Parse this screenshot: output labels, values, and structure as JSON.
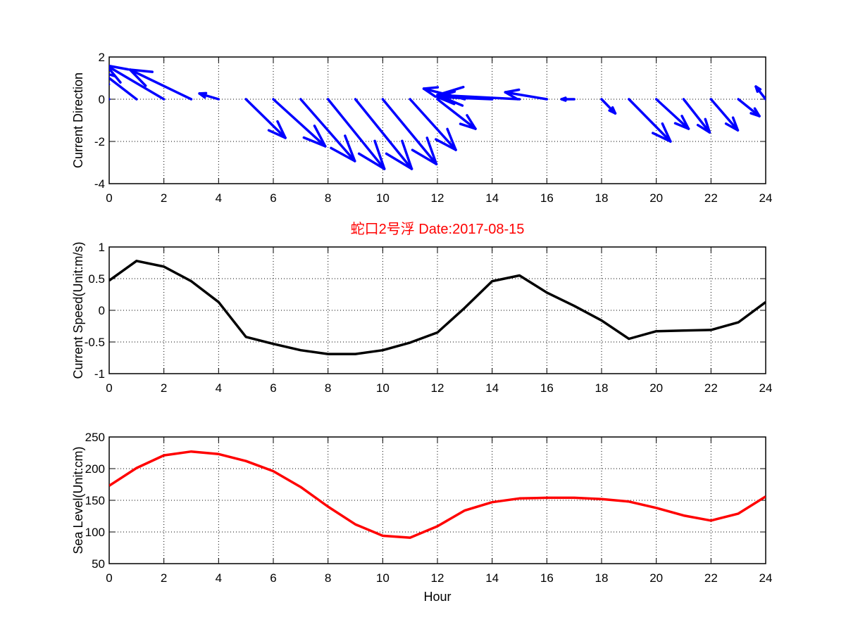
{
  "title": "蛇口2号浮   Date:2017-08-15",
  "colors": {
    "quiver": "#0000ff",
    "speed": "#000000",
    "sea": "#ff0000",
    "title": "#ff0000"
  },
  "chart_data": [
    {
      "type": "quiver",
      "ylabel": "Current Direction",
      "xlabel": "",
      "xlim": [
        0,
        24
      ],
      "ylim": [
        -4,
        2
      ],
      "xticks": [
        "0",
        "2",
        "4",
        "6",
        "8",
        "10",
        "12",
        "14",
        "16",
        "18",
        "20",
        "22",
        "24"
      ],
      "yticks": [
        "-4",
        "-2",
        "0",
        "2"
      ],
      "grid": true,
      "x": [
        0,
        1,
        2,
        3,
        4,
        5,
        6,
        7,
        8,
        9,
        10,
        11,
        12,
        13,
        14,
        15,
        16,
        17,
        18,
        19,
        20,
        21,
        22,
        23,
        24
      ],
      "u": [
        -1.6,
        -1.3,
        -2.1,
        -2.24,
        -0.7,
        1.44,
        1.9,
        1.98,
        2.06,
        2.06,
        1.96,
        1.67,
        1.39,
        -1.5,
        -2.0,
        -3.0,
        -1.52,
        -0.46,
        0.5,
        1.52,
        1.18,
        0.95,
        0.98,
        0.77,
        -0.36
      ],
      "v": [
        1.5,
        1.3,
        1.6,
        1.4,
        0.27,
        -1.83,
        -2.23,
        -2.93,
        -3.3,
        -3.3,
        -3.07,
        -2.4,
        -1.4,
        0.5,
        0.1,
        0.2,
        0.33,
        0.0,
        -0.67,
        -2.0,
        -1.4,
        -1.57,
        -1.47,
        -0.8,
        0.6
      ]
    },
    {
      "type": "line",
      "ylabel": "Current Speed(Unit:m/s)",
      "xlabel": "",
      "xlim": [
        0,
        24
      ],
      "ylim": [
        -1,
        1
      ],
      "xticks": [
        "0",
        "2",
        "4",
        "6",
        "8",
        "10",
        "12",
        "14",
        "16",
        "18",
        "20",
        "22",
        "24"
      ],
      "yticks": [
        "-1",
        "-0.5",
        "0",
        "0.5",
        "1"
      ],
      "grid": true,
      "x": [
        0,
        1,
        2,
        3,
        4,
        5,
        6,
        7,
        8,
        9,
        10,
        11,
        12,
        13,
        14,
        15,
        16,
        17,
        18,
        19,
        20,
        21,
        22,
        23,
        24
      ],
      "y": [
        0.47,
        0.78,
        0.69,
        0.46,
        0.13,
        -0.42,
        -0.53,
        -0.63,
        -0.69,
        -0.69,
        -0.63,
        -0.51,
        -0.35,
        0.04,
        0.46,
        0.55,
        0.28,
        0.07,
        -0.16,
        -0.45,
        -0.33,
        -0.32,
        -0.31,
        -0.19,
        0.13
      ]
    },
    {
      "type": "line",
      "ylabel": "Sea Level(Unit:cm)",
      "xlabel": "Hour",
      "xlim": [
        0,
        24
      ],
      "ylim": [
        50,
        250
      ],
      "xticks": [
        "0",
        "2",
        "4",
        "6",
        "8",
        "10",
        "12",
        "14",
        "16",
        "18",
        "20",
        "22",
        "24"
      ],
      "yticks": [
        "50",
        "100",
        "150",
        "200",
        "250"
      ],
      "grid": true,
      "x": [
        0,
        1,
        2,
        3,
        4,
        5,
        6,
        7,
        8,
        9,
        10,
        11,
        12,
        13,
        14,
        15,
        16,
        17,
        18,
        19,
        20,
        21,
        22,
        23,
        24
      ],
      "y": [
        173,
        201,
        221,
        227,
        223,
        212,
        196,
        171,
        140,
        112,
        94,
        91,
        109,
        134,
        147,
        153,
        154,
        154,
        152,
        148,
        138,
        126,
        118,
        129,
        156
      ]
    }
  ]
}
